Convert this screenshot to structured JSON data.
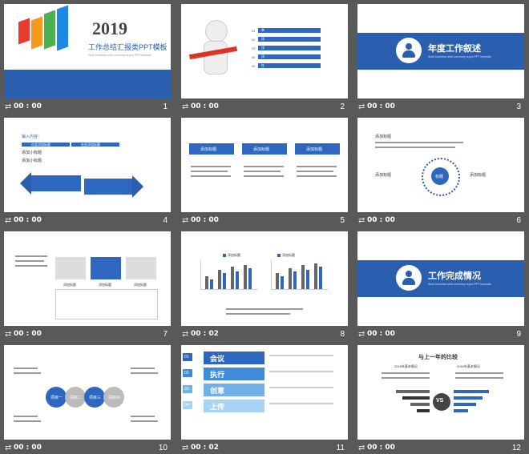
{
  "slides": [
    {
      "num": "1",
      "time": "00 : 00",
      "year": "2019",
      "title": "工作总结汇报类PPT模板",
      "subtitle": "Work business work summary report PPT template"
    },
    {
      "num": "2",
      "time": "00 : 00",
      "menu": [
        "单击添加标题",
        "添加您需要的标题",
        "添加您的标题内容",
        "添加您的标题",
        "在此添加标题"
      ]
    },
    {
      "num": "3",
      "time": "00 : 00",
      "heading": "年度工作叙述",
      "sub": "Work business work summary report PPT template"
    },
    {
      "num": "4",
      "time": "00 : 00",
      "label": "输入内容：",
      "tags": [
        "在此添加标题",
        "在此添加标题"
      ],
      "items": [
        "添加小标题",
        "添加小标题"
      ]
    },
    {
      "num": "5",
      "time": "00 : 00",
      "heads": [
        "添加标题",
        "添加标题",
        "添加标题"
      ]
    },
    {
      "num": "6",
      "time": "00 : 00",
      "heading": "添加标题",
      "center": "标题",
      "side_l": "添加标题",
      "side_r": "添加标题"
    },
    {
      "num": "7",
      "time": "00 : 00",
      "cells": [
        "添加标题",
        "添加标题",
        "添加标题"
      ]
    },
    {
      "num": "8",
      "time": "00 : 02",
      "legend": [
        "添加标题",
        "添加标题"
      ]
    },
    {
      "num": "9",
      "time": "00 : 00",
      "heading": "工作完成情况",
      "sub": "Work business work summary report PPT template"
    },
    {
      "num": "10",
      "time": "00 : 00",
      "nodes": [
        "项目一",
        "项目二",
        "项目三",
        "项目四"
      ]
    },
    {
      "num": "11",
      "time": "00 : 02",
      "items": [
        {
          "n": "01",
          "t": "会议"
        },
        {
          "n": "02",
          "t": "执行"
        },
        {
          "n": "03",
          "t": "创意"
        },
        {
          "n": "04",
          "t": "上传"
        }
      ]
    },
    {
      "num": "12",
      "time": "00 : 00",
      "title": "与上一年的比较",
      "left": "2015年基本情况",
      "right": "2016年基本情况",
      "vs": "VS"
    }
  ],
  "colors": {
    "primary": "#2a5fb0",
    "background": "#595959"
  }
}
